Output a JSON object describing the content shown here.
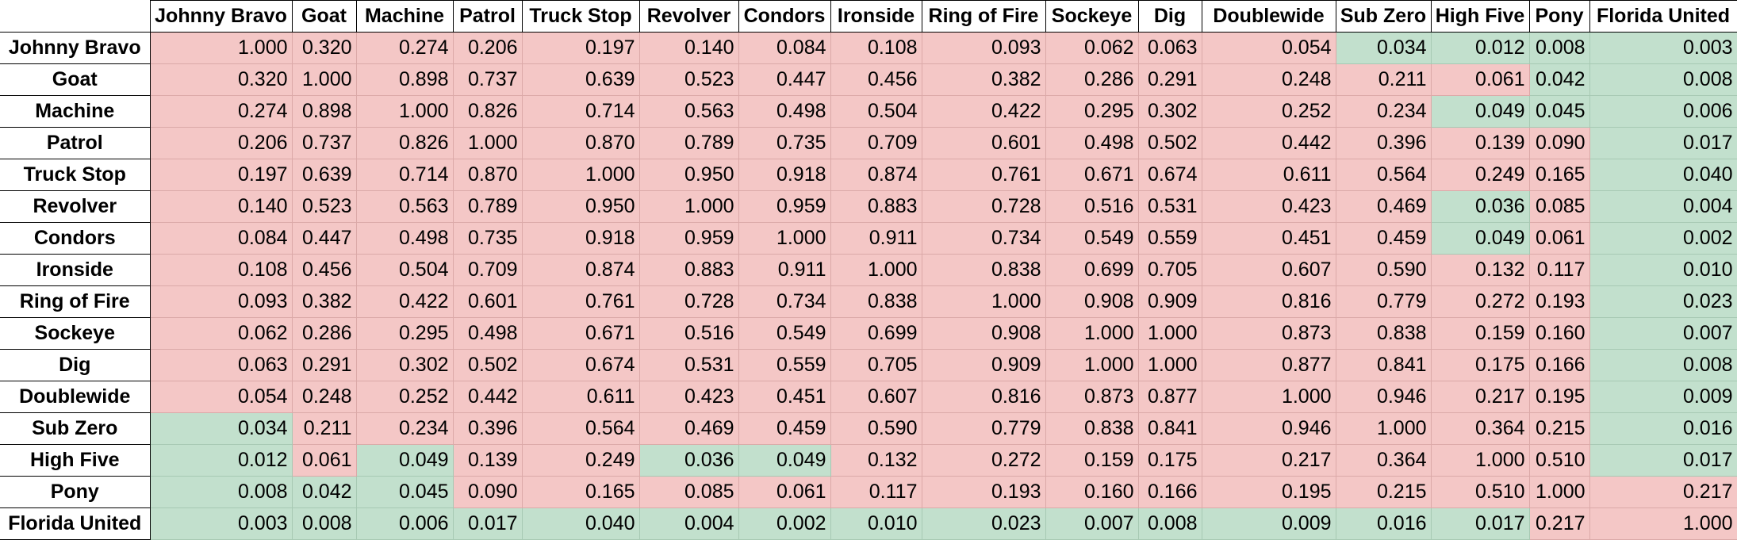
{
  "colors": {
    "significant_fill": "#f4c7c6",
    "not_significant_fill": "#c2e0cd",
    "header_fill": "#ffffff",
    "header_border": "#000000"
  },
  "column_headers": [
    "Johnny Bravo",
    "Goat",
    "Machine",
    "Patrol",
    "Truck Stop",
    "Revolver",
    "Condors",
    "Ironside",
    "Ring of Fire",
    "Sockeye",
    "Dig",
    "Doublewide",
    "Sub Zero",
    "High Five",
    "Pony",
    "Florida United"
  ],
  "rows": [
    {
      "label": "Johnny Bravo",
      "values": [
        "1.000",
        "0.320",
        "0.274",
        "0.206",
        "0.197",
        "0.140",
        "0.084",
        "0.108",
        "0.093",
        "0.062",
        "0.063",
        "0.054",
        "0.034",
        "0.012",
        "0.008",
        "0.003"
      ],
      "shade": [
        "r",
        "r",
        "r",
        "r",
        "r",
        "r",
        "r",
        "r",
        "r",
        "r",
        "r",
        "r",
        "g",
        "g",
        "g",
        "g"
      ]
    },
    {
      "label": "Goat",
      "values": [
        "0.320",
        "1.000",
        "0.898",
        "0.737",
        "0.639",
        "0.523",
        "0.447",
        "0.456",
        "0.382",
        "0.286",
        "0.291",
        "0.248",
        "0.211",
        "0.061",
        "0.042",
        "0.008"
      ],
      "shade": [
        "r",
        "r",
        "r",
        "r",
        "r",
        "r",
        "r",
        "r",
        "r",
        "r",
        "r",
        "r",
        "r",
        "r",
        "g",
        "g"
      ]
    },
    {
      "label": "Machine",
      "values": [
        "0.274",
        "0.898",
        "1.000",
        "0.826",
        "0.714",
        "0.563",
        "0.498",
        "0.504",
        "0.422",
        "0.295",
        "0.302",
        "0.252",
        "0.234",
        "0.049",
        "0.045",
        "0.006"
      ],
      "shade": [
        "r",
        "r",
        "r",
        "r",
        "r",
        "r",
        "r",
        "r",
        "r",
        "r",
        "r",
        "r",
        "r",
        "g",
        "g",
        "g"
      ]
    },
    {
      "label": "Patrol",
      "values": [
        "0.206",
        "0.737",
        "0.826",
        "1.000",
        "0.870",
        "0.789",
        "0.735",
        "0.709",
        "0.601",
        "0.498",
        "0.502",
        "0.442",
        "0.396",
        "0.139",
        "0.090",
        "0.017"
      ],
      "shade": [
        "r",
        "r",
        "r",
        "r",
        "r",
        "r",
        "r",
        "r",
        "r",
        "r",
        "r",
        "r",
        "r",
        "r",
        "r",
        "g"
      ]
    },
    {
      "label": "Truck Stop",
      "values": [
        "0.197",
        "0.639",
        "0.714",
        "0.870",
        "1.000",
        "0.950",
        "0.918",
        "0.874",
        "0.761",
        "0.671",
        "0.674",
        "0.611",
        "0.564",
        "0.249",
        "0.165",
        "0.040"
      ],
      "shade": [
        "r",
        "r",
        "r",
        "r",
        "r",
        "r",
        "r",
        "r",
        "r",
        "r",
        "r",
        "r",
        "r",
        "r",
        "r",
        "g"
      ]
    },
    {
      "label": "Revolver",
      "values": [
        "0.140",
        "0.523",
        "0.563",
        "0.789",
        "0.950",
        "1.000",
        "0.959",
        "0.883",
        "0.728",
        "0.516",
        "0.531",
        "0.423",
        "0.469",
        "0.036",
        "0.085",
        "0.004"
      ],
      "shade": [
        "r",
        "r",
        "r",
        "r",
        "r",
        "r",
        "r",
        "r",
        "r",
        "r",
        "r",
        "r",
        "r",
        "g",
        "r",
        "g"
      ]
    },
    {
      "label": "Condors",
      "values": [
        "0.084",
        "0.447",
        "0.498",
        "0.735",
        "0.918",
        "0.959",
        "1.000",
        "0.911",
        "0.734",
        "0.549",
        "0.559",
        "0.451",
        "0.459",
        "0.049",
        "0.061",
        "0.002"
      ],
      "shade": [
        "r",
        "r",
        "r",
        "r",
        "r",
        "r",
        "r",
        "r",
        "r",
        "r",
        "r",
        "r",
        "r",
        "g",
        "r",
        "g"
      ]
    },
    {
      "label": "Ironside",
      "values": [
        "0.108",
        "0.456",
        "0.504",
        "0.709",
        "0.874",
        "0.883",
        "0.911",
        "1.000",
        "0.838",
        "0.699",
        "0.705",
        "0.607",
        "0.590",
        "0.132",
        "0.117",
        "0.010"
      ],
      "shade": [
        "r",
        "r",
        "r",
        "r",
        "r",
        "r",
        "r",
        "r",
        "r",
        "r",
        "r",
        "r",
        "r",
        "r",
        "r",
        "g"
      ]
    },
    {
      "label": "Ring of Fire",
      "values": [
        "0.093",
        "0.382",
        "0.422",
        "0.601",
        "0.761",
        "0.728",
        "0.734",
        "0.838",
        "1.000",
        "0.908",
        "0.909",
        "0.816",
        "0.779",
        "0.272",
        "0.193",
        "0.023"
      ],
      "shade": [
        "r",
        "r",
        "r",
        "r",
        "r",
        "r",
        "r",
        "r",
        "r",
        "r",
        "r",
        "r",
        "r",
        "r",
        "r",
        "g"
      ]
    },
    {
      "label": "Sockeye",
      "values": [
        "0.062",
        "0.286",
        "0.295",
        "0.498",
        "0.671",
        "0.516",
        "0.549",
        "0.699",
        "0.908",
        "1.000",
        "1.000",
        "0.873",
        "0.838",
        "0.159",
        "0.160",
        "0.007"
      ],
      "shade": [
        "r",
        "r",
        "r",
        "r",
        "r",
        "r",
        "r",
        "r",
        "r",
        "r",
        "r",
        "r",
        "r",
        "r",
        "r",
        "g"
      ]
    },
    {
      "label": "Dig",
      "values": [
        "0.063",
        "0.291",
        "0.302",
        "0.502",
        "0.674",
        "0.531",
        "0.559",
        "0.705",
        "0.909",
        "1.000",
        "1.000",
        "0.877",
        "0.841",
        "0.175",
        "0.166",
        "0.008"
      ],
      "shade": [
        "r",
        "r",
        "r",
        "r",
        "r",
        "r",
        "r",
        "r",
        "r",
        "r",
        "r",
        "r",
        "r",
        "r",
        "r",
        "g"
      ]
    },
    {
      "label": "Doublewide",
      "values": [
        "0.054",
        "0.248",
        "0.252",
        "0.442",
        "0.611",
        "0.423",
        "0.451",
        "0.607",
        "0.816",
        "0.873",
        "0.877",
        "1.000",
        "0.946",
        "0.217",
        "0.195",
        "0.009"
      ],
      "shade": [
        "r",
        "r",
        "r",
        "r",
        "r",
        "r",
        "r",
        "r",
        "r",
        "r",
        "r",
        "r",
        "r",
        "r",
        "r",
        "g"
      ]
    },
    {
      "label": "Sub Zero",
      "values": [
        "0.034",
        "0.211",
        "0.234",
        "0.396",
        "0.564",
        "0.469",
        "0.459",
        "0.590",
        "0.779",
        "0.838",
        "0.841",
        "0.946",
        "1.000",
        "0.364",
        "0.215",
        "0.016"
      ],
      "shade": [
        "g",
        "r",
        "r",
        "r",
        "r",
        "r",
        "r",
        "r",
        "r",
        "r",
        "r",
        "r",
        "r",
        "r",
        "r",
        "g"
      ]
    },
    {
      "label": "High Five",
      "values": [
        "0.012",
        "0.061",
        "0.049",
        "0.139",
        "0.249",
        "0.036",
        "0.049",
        "0.132",
        "0.272",
        "0.159",
        "0.175",
        "0.217",
        "0.364",
        "1.000",
        "0.510",
        "0.017"
      ],
      "shade": [
        "g",
        "r",
        "g",
        "r",
        "r",
        "g",
        "g",
        "r",
        "r",
        "r",
        "r",
        "r",
        "r",
        "r",
        "r",
        "g"
      ]
    },
    {
      "label": "Pony",
      "values": [
        "0.008",
        "0.042",
        "0.045",
        "0.090",
        "0.165",
        "0.085",
        "0.061",
        "0.117",
        "0.193",
        "0.160",
        "0.166",
        "0.195",
        "0.215",
        "0.510",
        "1.000",
        "0.217"
      ],
      "shade": [
        "g",
        "g",
        "g",
        "r",
        "r",
        "r",
        "r",
        "r",
        "r",
        "r",
        "r",
        "r",
        "r",
        "r",
        "r",
        "r"
      ]
    },
    {
      "label": "Florida United",
      "values": [
        "0.003",
        "0.008",
        "0.006",
        "0.017",
        "0.040",
        "0.004",
        "0.002",
        "0.010",
        "0.023",
        "0.007",
        "0.008",
        "0.009",
        "0.016",
        "0.017",
        "0.217",
        "1.000"
      ],
      "shade": [
        "g",
        "g",
        "g",
        "g",
        "g",
        "g",
        "g",
        "g",
        "g",
        "g",
        "g",
        "g",
        "g",
        "g",
        "r",
        "r"
      ]
    }
  ]
}
